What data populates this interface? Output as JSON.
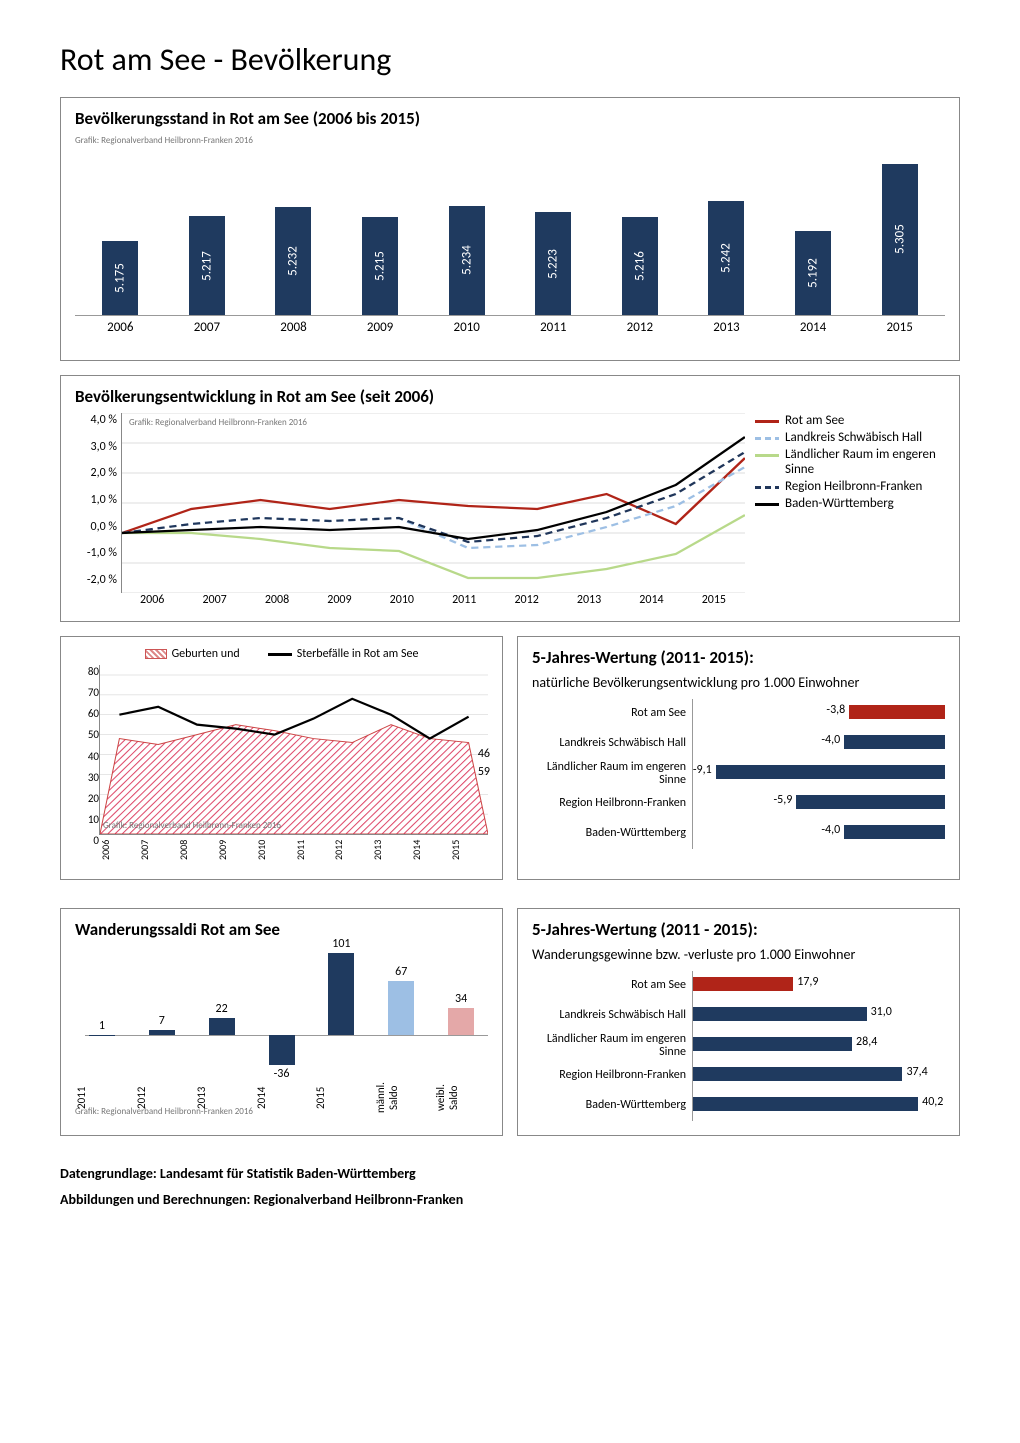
{
  "page": {
    "title": "Rot am See - Bevölkerung",
    "footer_line1": "Datengrundlage: Landesamt für Statistik Baden-Württemberg",
    "footer_line2": "Abbildungen und Berechnungen: Regionalverband Heilbronn-Franken",
    "credit_text": "Grafik: Regionalverband Heilbronn-Franken 2016"
  },
  "colors": {
    "primary_bar": "#1f3a5f",
    "rot_am_see": "#b02418",
    "landkreis": "#9dbfe4",
    "laendlich": "#b8d98a",
    "region": "#20365a",
    "bw": "#000000",
    "light_blue": "#9dbfe4",
    "light_red": "#e4a8a8"
  },
  "chart_pop_stand": {
    "title": "Bevölkerungsstand in Rot am See (2006 bis 2015)",
    "years": [
      "2006",
      "2007",
      "2008",
      "2009",
      "2010",
      "2011",
      "2012",
      "2013",
      "2014",
      "2015"
    ],
    "values": [
      5175,
      5217,
      5232,
      5215,
      5234,
      5223,
      5216,
      5242,
      5192,
      5305
    ],
    "labels": [
      "5.175",
      "5.217",
      "5.232",
      "5.215",
      "5.234",
      "5.223",
      "5.216",
      "5.242",
      "5.192",
      "5.305"
    ],
    "ymin": 5050,
    "ymax": 5320
  },
  "chart_dev": {
    "title": "Bevölkerungsentwicklung in Rot am See (seit 2006)",
    "years": [
      "2006",
      "2007",
      "2008",
      "2009",
      "2010",
      "2011",
      "2012",
      "2013",
      "2014",
      "2015"
    ],
    "ylabels": [
      "4,0 %",
      "3,0 %",
      "2,0 %",
      "1,0 %",
      "0,0 %",
      "-1,0 %",
      "-2,0 %"
    ],
    "ymin": -2.0,
    "ymax": 4.0,
    "series": [
      {
        "name": "Rot am See",
        "color": "#b02418",
        "dash": false,
        "vals": [
          0.0,
          0.8,
          1.1,
          0.8,
          1.1,
          0.9,
          0.8,
          1.3,
          0.3,
          2.5
        ]
      },
      {
        "name": "Landkreis Schwäbisch Hall",
        "color": "#9dbfe4",
        "dash": true,
        "vals": [
          0.0,
          0.3,
          0.5,
          0.4,
          0.5,
          -0.5,
          -0.4,
          0.2,
          0.9,
          2.2
        ]
      },
      {
        "name": "Ländlicher Raum im engeren Sinne",
        "color": "#b8d98a",
        "dash": false,
        "vals": [
          0.0,
          0.0,
          -0.2,
          -0.5,
          -0.6,
          -1.5,
          -1.5,
          -1.2,
          -0.7,
          0.6
        ]
      },
      {
        "name": "Region Heilbronn-Franken",
        "color": "#20365a",
        "dash": true,
        "vals": [
          0.0,
          0.3,
          0.5,
          0.4,
          0.5,
          -0.3,
          -0.1,
          0.5,
          1.3,
          2.7
        ]
      },
      {
        "name": "Baden-Württemberg",
        "color": "#000000",
        "dash": false,
        "vals": [
          0.0,
          0.1,
          0.2,
          0.1,
          0.2,
          -0.2,
          0.1,
          0.7,
          1.6,
          3.2
        ]
      }
    ],
    "legend_labels": [
      "Rot am See",
      "Landkreis Schwäbisch Hall",
      "Ländlicher Raum im engeren Sinne",
      "Region Heilbronn-Franken",
      "Baden-Württemberg"
    ]
  },
  "chart_births": {
    "legend_a": "Geburten und",
    "legend_b": "Sterbefälle in Rot am See",
    "years": [
      "2006",
      "2007",
      "2008",
      "2009",
      "2010",
      "2011",
      "2012",
      "2013",
      "2014",
      "2015"
    ],
    "yticks": [
      "80",
      "70",
      "60",
      "50",
      "40",
      "30",
      "20",
      "10",
      "0"
    ],
    "ymax": 85,
    "births": [
      48,
      45,
      50,
      55,
      52,
      48,
      46,
      55,
      48,
      46
    ],
    "deaths": [
      60,
      64,
      55,
      53,
      50,
      58,
      68,
      60,
      48,
      59
    ],
    "note_a": "46",
    "note_b": "59"
  },
  "chart_nat_5y": {
    "title": "5-Jahres-Wertung (2011- 2015):",
    "subtitle": "natürliche Bevölkerungsentwicklung pro 1.000 Einwohner",
    "rows": [
      {
        "label": "Rot am See",
        "val": -3.8,
        "txt": "-3,8",
        "color": "#b02418"
      },
      {
        "label": "Landkreis Schwäbisch Hall",
        "val": -4.0,
        "txt": "-4,0",
        "color": "#1f3a5f"
      },
      {
        "label": "Ländlicher Raum im engeren Sinne",
        "val": -9.1,
        "txt": "-9,1",
        "color": "#1f3a5f"
      },
      {
        "label": "Region Heilbronn-Franken",
        "val": -5.9,
        "txt": "-5,9",
        "color": "#1f3a5f"
      },
      {
        "label": "Baden-Württemberg",
        "val": -4.0,
        "txt": "-4,0",
        "color": "#1f3a5f"
      }
    ],
    "min": -10,
    "max": 0
  },
  "chart_migration": {
    "title": "Wanderungssaldi Rot am See",
    "cats": [
      "2011",
      "2012",
      "2013",
      "2014",
      "2015",
      "männl. Saldo",
      "weibl. Saldo"
    ],
    "bars": [
      {
        "val": 1,
        "txt": "1",
        "color": "#1f3a5f"
      },
      {
        "val": 7,
        "txt": "7",
        "color": "#1f3a5f"
      },
      {
        "val": 22,
        "txt": "22",
        "color": "#1f3a5f"
      },
      {
        "val": -36,
        "txt": "-36",
        "color": "#1f3a5f"
      },
      {
        "val": 101,
        "txt": "101",
        "color": "#1f3a5f"
      },
      {
        "val": 67,
        "txt": "67",
        "color": "#9dbfe4"
      },
      {
        "val": 34,
        "txt": "34",
        "color": "#e4a8a8"
      }
    ],
    "ymin": -50,
    "ymax": 110
  },
  "chart_mig_5y": {
    "title": "5-Jahres-Wertung (2011 - 2015):",
    "subtitle": "Wanderungsgewinne bzw. -verluste pro 1.000 Einwohner",
    "rows": [
      {
        "label": "Rot am See",
        "val": 17.9,
        "txt": "17,9",
        "color": "#b02418"
      },
      {
        "label": "Landkreis Schwäbisch Hall",
        "val": 31.0,
        "txt": "31,0",
        "color": "#1f3a5f"
      },
      {
        "label": "Ländlicher Raum im engeren Sinne",
        "val": 28.4,
        "txt": "28,4",
        "color": "#1f3a5f"
      },
      {
        "label": "Region Heilbronn-Franken",
        "val": 37.4,
        "txt": "37,4",
        "color": "#1f3a5f"
      },
      {
        "label": "Baden-Württemberg",
        "val": 40.2,
        "txt": "40,2",
        "color": "#1f3a5f"
      }
    ],
    "min": 0,
    "max": 45
  }
}
